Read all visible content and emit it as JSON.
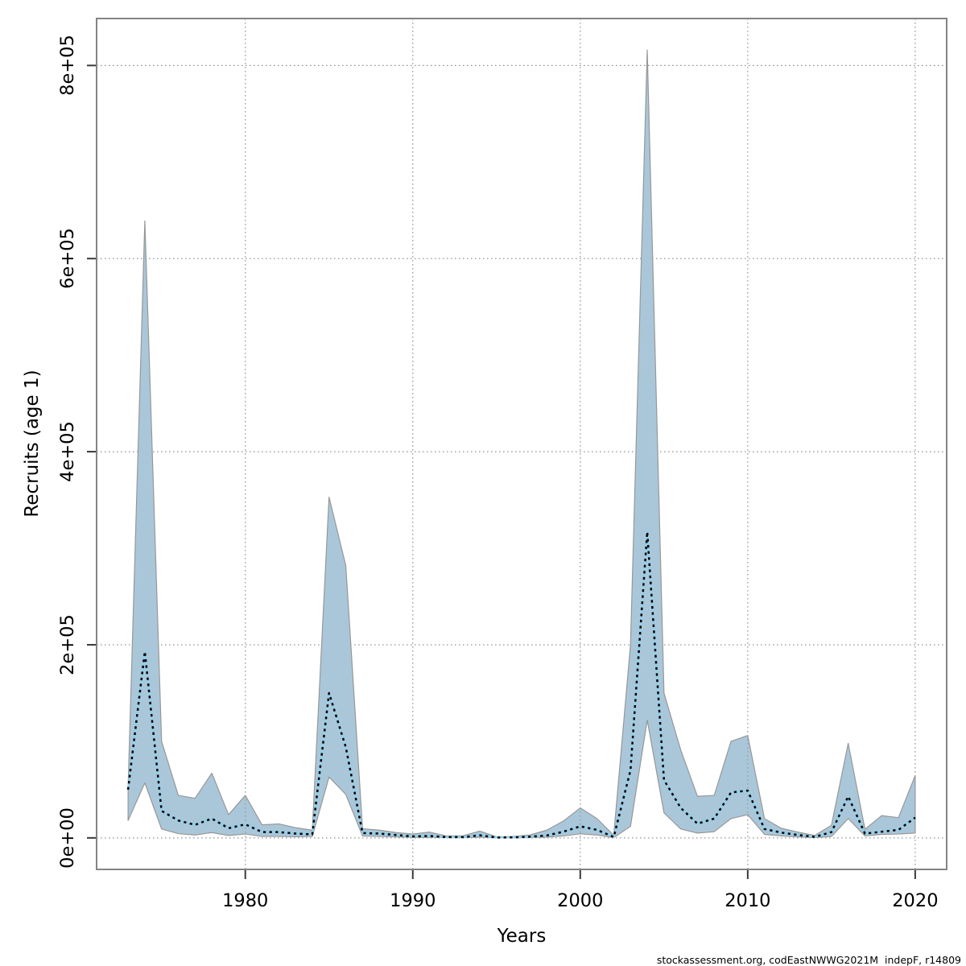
{
  "figure": {
    "xlabel": "Years",
    "ylabel": "Recruits (age 1)",
    "footer": "stockassessment.org, codEastNWWG2021M  indepF, r14809"
  },
  "chart_data": {
    "type": "area",
    "title": "",
    "xlabel": "Years",
    "ylabel": "Recruits (age 1)",
    "grid": true,
    "legend": false,
    "xlim": [
      1971.12,
      2021.88
    ],
    "ylim": [
      -32640,
      848640
    ],
    "x_ticks": {
      "values": [
        1980,
        1990,
        2000,
        2010,
        2020
      ],
      "labels": [
        "1980",
        "1990",
        "2000",
        "2010",
        "2020"
      ]
    },
    "y_ticks": {
      "values": [
        0,
        200000,
        400000,
        600000,
        800000
      ],
      "labels": [
        "0e+00",
        "2e+05",
        "4e+05",
        "6e+05",
        "8e+05"
      ]
    },
    "years": [
      1973,
      1974,
      1975,
      1976,
      1977,
      1978,
      1979,
      1980,
      1981,
      1982,
      1983,
      1984,
      1985,
      1986,
      1987,
      1988,
      1989,
      1990,
      1991,
      1992,
      1993,
      1994,
      1995,
      1996,
      1997,
      1998,
      1999,
      2000,
      2001,
      2002,
      2003,
      2004,
      2005,
      2006,
      2007,
      2008,
      2009,
      2010,
      2011,
      2012,
      2013,
      2014,
      2015,
      2016,
      2017,
      2018,
      2019,
      2020
    ],
    "median": [
      50000,
      193000,
      28000,
      18000,
      13500,
      20000,
      10000,
      14000,
      6000,
      6000,
      4500,
      3600,
      150000,
      94000,
      5000,
      4500,
      3000,
      1500,
      2000,
      800,
      800,
      2700,
      400,
      500,
      1200,
      2500,
      6400,
      12000,
      8300,
      900,
      70000,
      317000,
      60000,
      31000,
      14700,
      20000,
      47000,
      49000,
      9200,
      5500,
      3000,
      1000,
      6000,
      43000,
      4400,
      6400,
      8300,
      21000
    ],
    "ci_lower": [
      18000,
      57000,
      9200,
      4400,
      3000,
      5500,
      2500,
      4000,
      1500,
      1500,
      1200,
      1500,
      63000,
      45000,
      2000,
      1500,
      1000,
      500,
      600,
      300,
      300,
      700,
      150,
      200,
      400,
      800,
      2000,
      4200,
      3000,
      250,
      12000,
      122000,
      26000,
      9200,
      5000,
      6400,
      20000,
      24000,
      3600,
      2000,
      1000,
      300,
      1500,
      20000,
      2000,
      3600,
      4000,
      5000
    ],
    "ci_upper": [
      52000,
      639000,
      100000,
      44000,
      41000,
      67000,
      24000,
      44000,
      13500,
      14500,
      10500,
      8000,
      353000,
      282000,
      9500,
      8000,
      5500,
      4000,
      6000,
      2000,
      2200,
      7000,
      1200,
      1500,
      3000,
      8000,
      17500,
      31000,
      20000,
      2800,
      200000,
      816000,
      150000,
      91000,
      43000,
      44000,
      100000,
      106000,
      20000,
      10000,
      6000,
      2500,
      13000,
      98000,
      9000,
      23000,
      21000,
      64500
    ],
    "colors": {
      "band_fill": "#aac7da",
      "band_edge": "#979797",
      "median_under": "#8fd0ec",
      "median_dash": "#000000",
      "grid": "#969696",
      "frame": "#848484",
      "tick": "#3a3a3a",
      "text": "#000000"
    }
  }
}
